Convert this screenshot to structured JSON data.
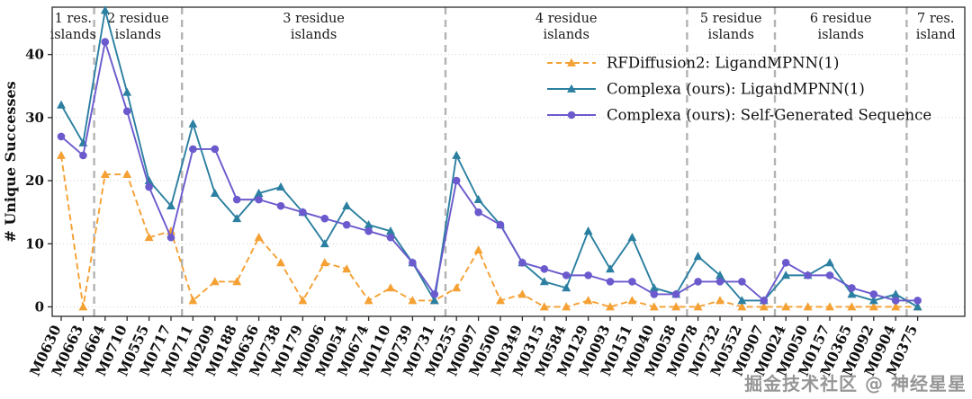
{
  "watermark": "掘金技术社区 @ 神经星星",
  "chart_data": {
    "type": "line",
    "title": "",
    "xlabel": "",
    "ylabel": "# Unique Successes",
    "ylim": [
      0,
      47
    ],
    "yticks": [
      0,
      10,
      20,
      30,
      40
    ],
    "grid": "horizontal-dotted",
    "legend_position": "upper-center-right",
    "separator_color": "#b3b3b3",
    "separators_after": [
      1,
      5,
      17,
      28,
      32,
      38
    ],
    "regions": [
      {
        "lines": [
          "1 res.",
          "islands"
        ]
      },
      {
        "lines": [
          "2 residue",
          "islands"
        ]
      },
      {
        "lines": [
          "3 residue",
          "islands"
        ]
      },
      {
        "lines": [
          "4 residue",
          "islands"
        ]
      },
      {
        "lines": [
          "5 residue",
          "islands"
        ]
      },
      {
        "lines": [
          "6 residue",
          "islands"
        ]
      },
      {
        "lines": [
          "7 res.",
          "island"
        ]
      }
    ],
    "categories": [
      "M0630",
      "M0663",
      "M0664",
      "M0710",
      "M0555",
      "M0717",
      "M0711",
      "M0209",
      "M0188",
      "M0636",
      "M0738",
      "M0179",
      "M0096",
      "M0054",
      "M0674",
      "M0110",
      "M0739",
      "M0731",
      "M0255",
      "M0097",
      "M0500",
      "M0349",
      "M0315",
      "M0584",
      "M0129",
      "M0093",
      "M0151",
      "M0040",
      "M0058",
      "M0078",
      "M0732",
      "M0552",
      "M0907",
      "M0024",
      "M0050",
      "M0157",
      "M0365",
      "M0092",
      "M0904",
      "M0375"
    ],
    "series": [
      {
        "name": "RFDiffusion2: LigandMPNN(1)",
        "color": "#f5a033",
        "line_style": "dashed",
        "marker": "triangle",
        "values": [
          24,
          0,
          21,
          21,
          11,
          12,
          1,
          4,
          4,
          11,
          7,
          1,
          7,
          6,
          1,
          3,
          1,
          1,
          3,
          9,
          1,
          2,
          0,
          0,
          1,
          0,
          1,
          0,
          0,
          0,
          1,
          0,
          0,
          0,
          0,
          0,
          0,
          0,
          0,
          0
        ]
      },
      {
        "name": "Complexa (ours): LigandMPNN(1)",
        "color": "#2b7fa0",
        "line_style": "solid",
        "marker": "triangle",
        "values": [
          32,
          26,
          47,
          34,
          20,
          16,
          29,
          18,
          14,
          18,
          19,
          15,
          10,
          16,
          13,
          12,
          7,
          1,
          24,
          17,
          13,
          7,
          4,
          3,
          12,
          6,
          11,
          3,
          2,
          8,
          5,
          1,
          1,
          5,
          5,
          7,
          2,
          1,
          2,
          0
        ]
      },
      {
        "name": "Complexa (ours): Self-Generated Sequence",
        "color": "#6a5acd",
        "line_style": "solid",
        "marker": "circle",
        "values": [
          27,
          24,
          42,
          31,
          19,
          11,
          25,
          25,
          17,
          17,
          16,
          15,
          14,
          13,
          12,
          11,
          7,
          2,
          20,
          15,
          13,
          7,
          6,
          5,
          5,
          4,
          4,
          2,
          2,
          4,
          4,
          4,
          1,
          7,
          5,
          5,
          3,
          2,
          1,
          1
        ]
      }
    ]
  }
}
